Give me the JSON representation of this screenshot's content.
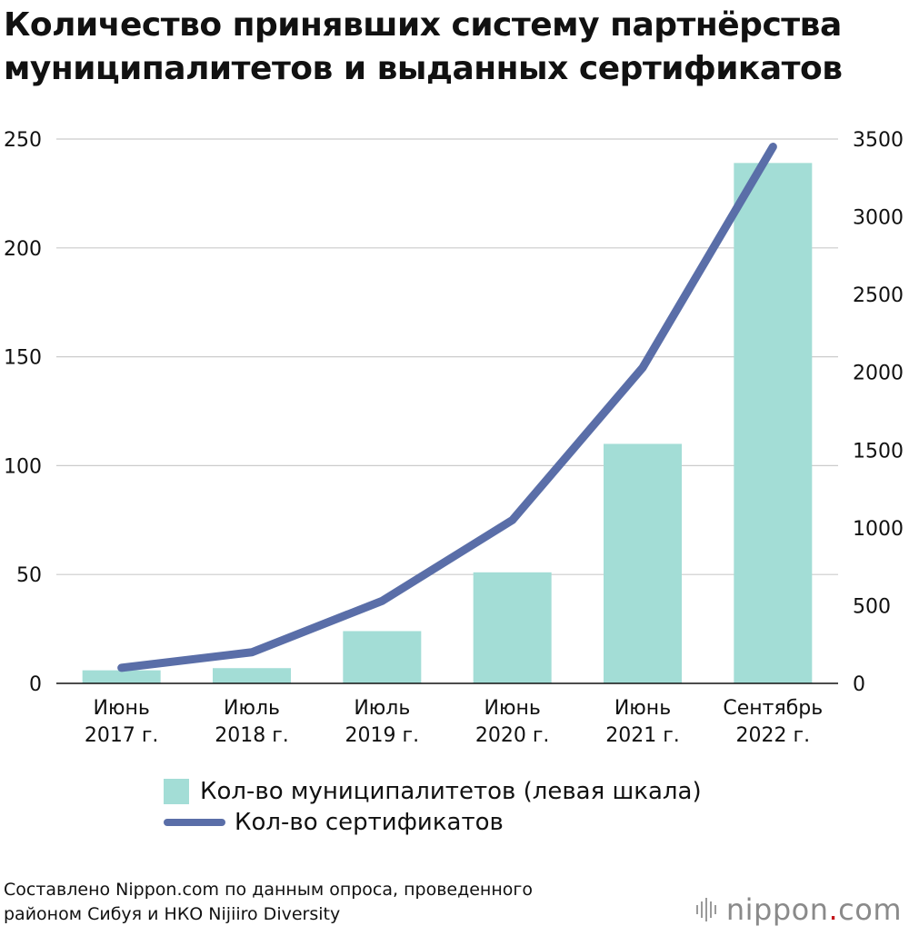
{
  "header": {
    "title_line1": "Количество принявших систему партнёрства",
    "title_line2": "муниципалитетов и выданных сертификатов"
  },
  "chart_data": {
    "type": "bar",
    "categories": [
      [
        "Июнь",
        "2017 г."
      ],
      [
        "Июль",
        "2018 г."
      ],
      [
        "Июль",
        "2019 г."
      ],
      [
        "Июнь",
        "2020 г."
      ],
      [
        "Июнь",
        "2021 г."
      ],
      [
        "Сентябрь",
        "2022 г."
      ]
    ],
    "series": [
      {
        "name": "Кол-во муниципалитетов (левая шкала)",
        "type": "bar",
        "axis": "left",
        "values": [
          6,
          7,
          24,
          51,
          110,
          239
        ]
      },
      {
        "name": "Кол-во сертификатов",
        "type": "line",
        "axis": "right",
        "values": [
          100,
          200,
          530,
          1050,
          2030,
          3450
        ]
      }
    ],
    "left_axis": {
      "ylim": [
        0,
        250
      ],
      "ticks": [
        0,
        50,
        100,
        150,
        200,
        250
      ]
    },
    "right_axis": {
      "ylim": [
        0,
        3500
      ],
      "ticks": [
        0,
        500,
        1000,
        1500,
        2000,
        2500,
        3000,
        3500
      ]
    },
    "grid": true,
    "legend_placement": "bottom",
    "colors": {
      "bar": "#a3ddd6",
      "line": "#5a6ea8",
      "grid": "#cccccc",
      "axis": "#111111"
    }
  },
  "footer": {
    "source_line1": "Составлено Nippon.com по данным опроса, проведенного",
    "source_line2": "районом Сибуя и НКО Nijiiro Diversity",
    "logo_name": "nippon",
    "logo_dot": ".",
    "logo_suffix": "com"
  }
}
